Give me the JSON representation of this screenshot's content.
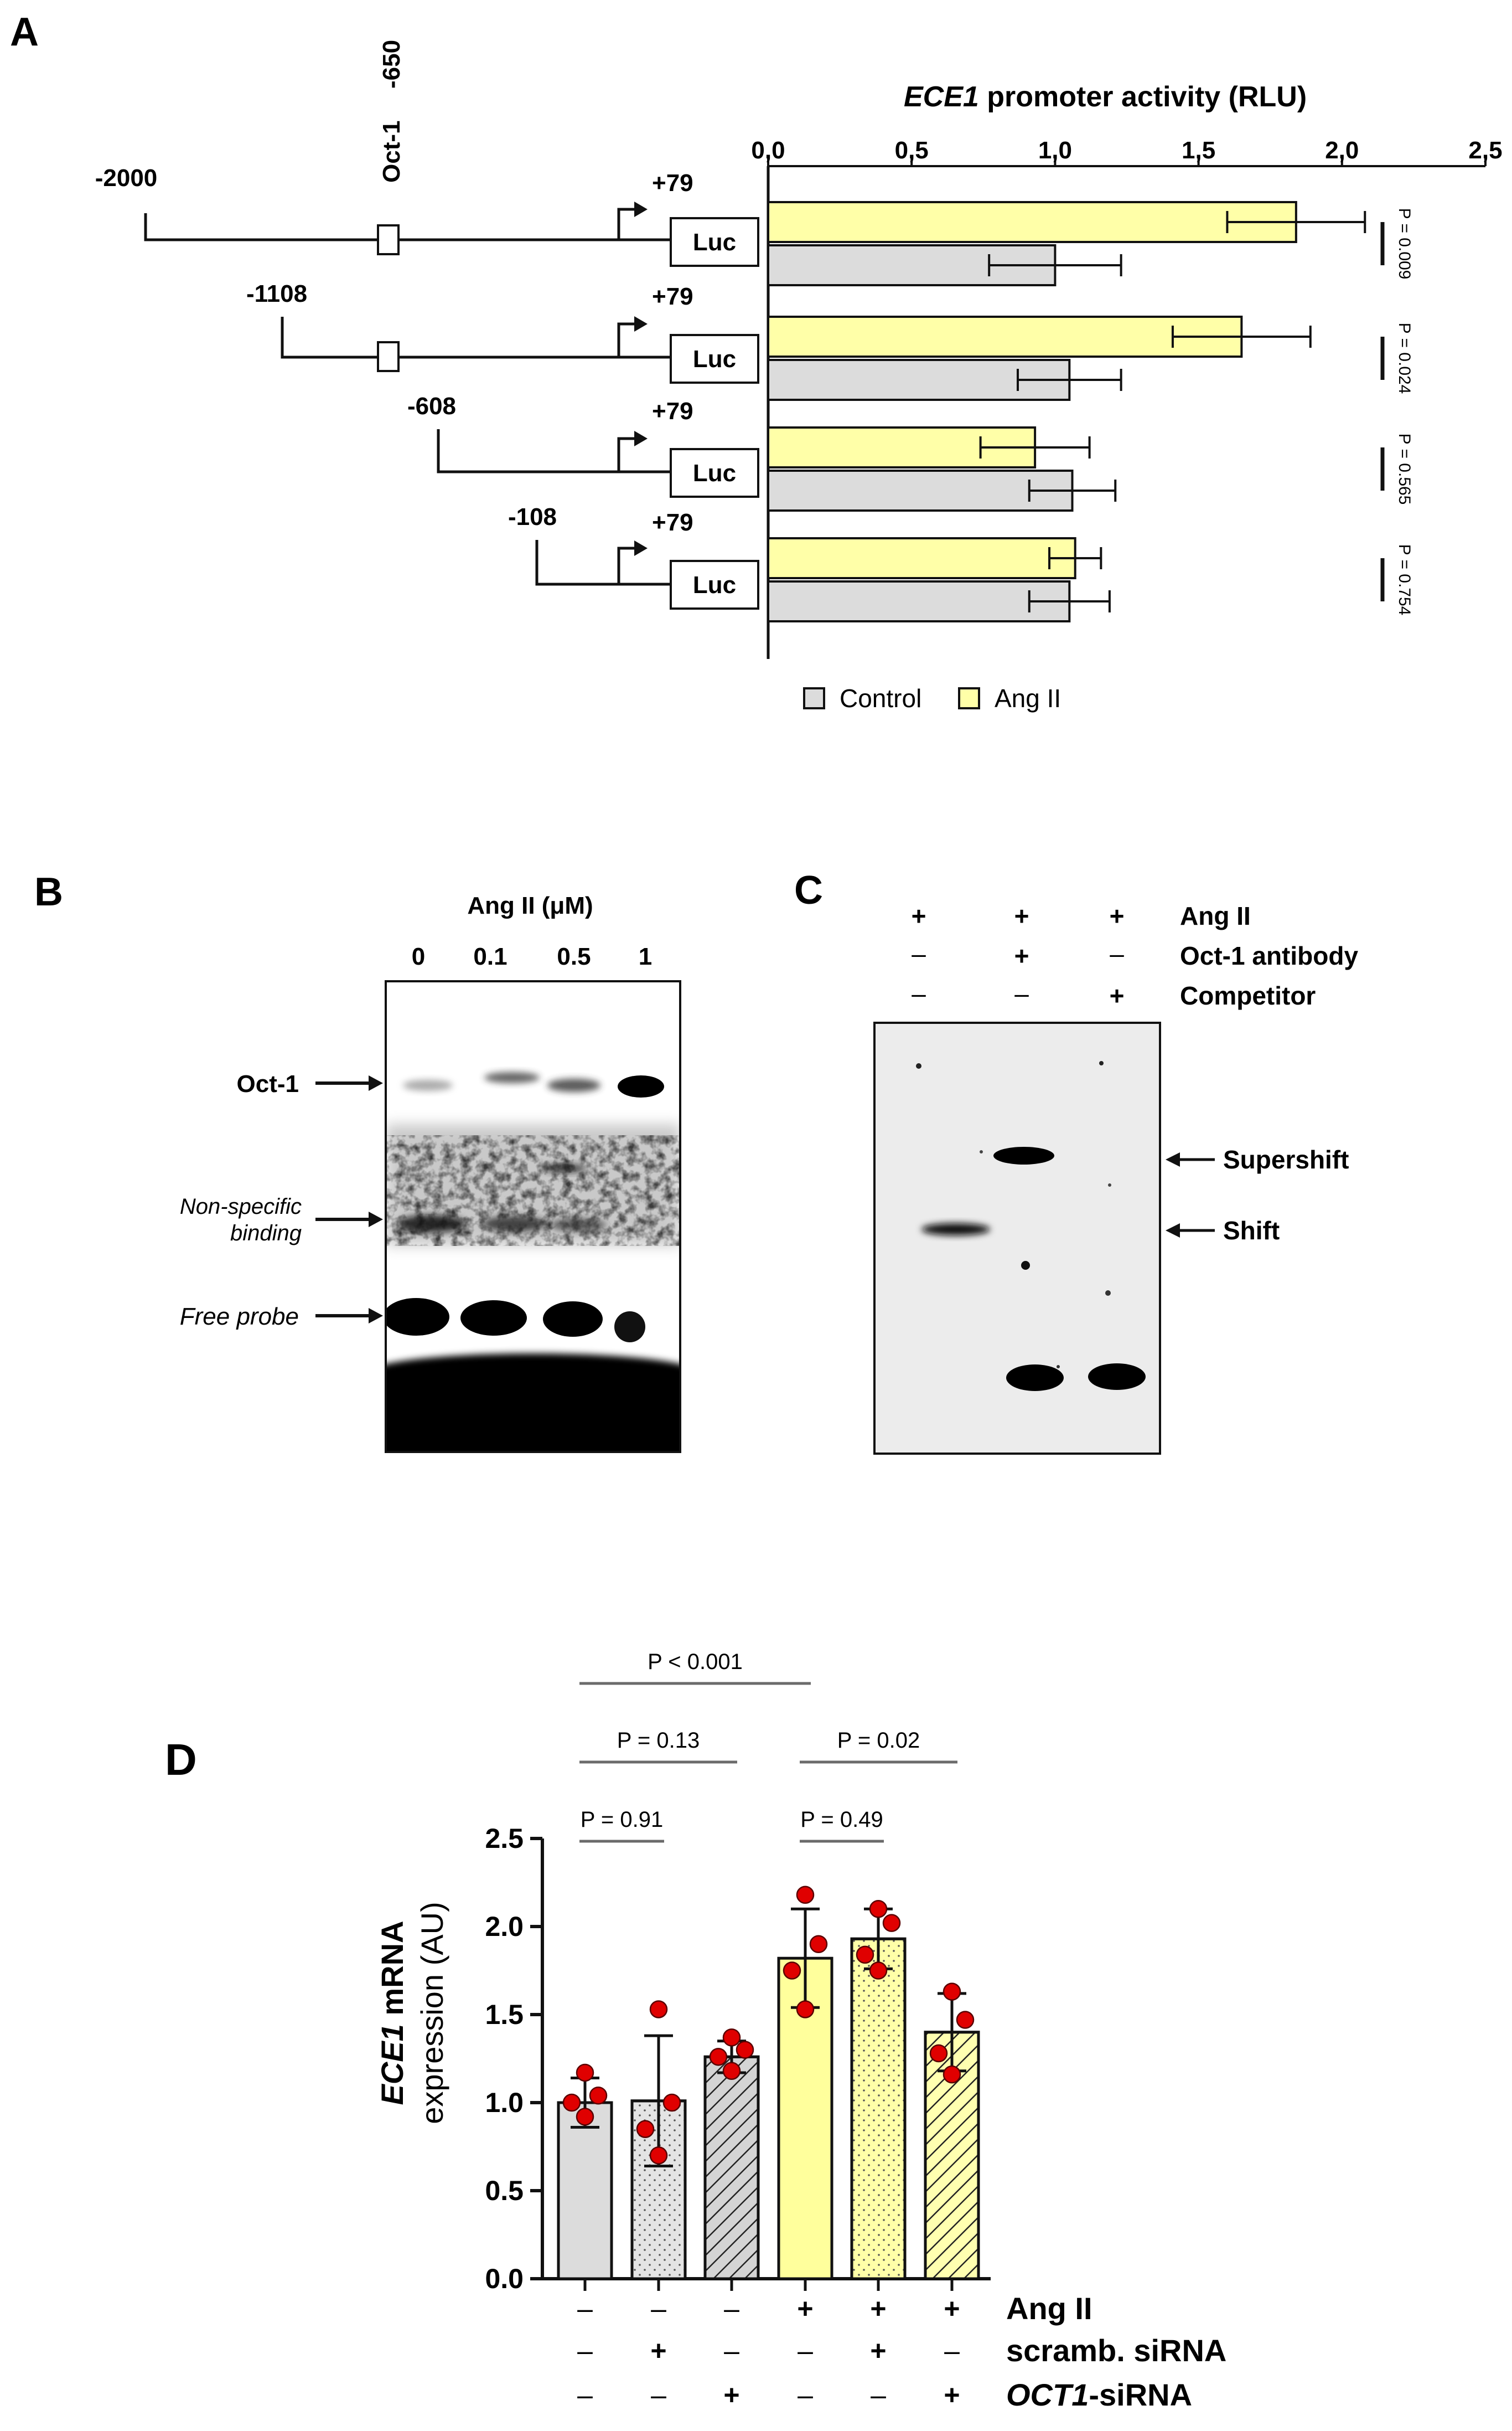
{
  "panels": {
    "A": {
      "letter": "A",
      "chart_title_italic": "ECE1",
      "chart_title_rest": " promoter activity (RLU)",
      "oct1_site": "Oct-1",
      "oct1_position": "-650",
      "luc": "Luc",
      "tss": "+79",
      "constructs": [
        "-2000",
        "-1108",
        "-608",
        "-108"
      ],
      "legend": [
        "Control",
        "Ang II"
      ]
    },
    "B": {
      "letter": "B",
      "header": "Ang II (μM)",
      "lanes": [
        "0",
        "0.1",
        "0.5",
        "1"
      ],
      "labels": {
        "oct1": "Oct-1",
        "nonspecific_1": "Non-specific",
        "nonspecific_2": "binding",
        "free_probe": "Free probe"
      }
    },
    "C": {
      "letter": "C",
      "rows": [
        {
          "label": "Ang II",
          "marks": [
            "+",
            "+",
            "+"
          ]
        },
        {
          "label": "Oct-1 antibody",
          "marks": [
            "–",
            "+",
            "–"
          ]
        },
        {
          "label": "Competitor",
          "marks": [
            "–",
            "–",
            "+"
          ]
        }
      ],
      "arrows": [
        "Supershift",
        "Shift"
      ]
    },
    "D": {
      "letter": "D",
      "ylabel_italic": "ECE1",
      "ylabel_rest": " mRNA",
      "ylabel_line2": "expression (AU)",
      "conditions": [
        {
          "label": "Ang II",
          "label_italic": "",
          "marks": [
            "–",
            "–",
            "–",
            "+",
            "+",
            "+"
          ]
        },
        {
          "label": "scramb. siRNA",
          "label_italic": "",
          "marks": [
            "–",
            "+",
            "–",
            "–",
            "+",
            "–"
          ]
        },
        {
          "label": "-siRNA",
          "label_italic": "OCT1",
          "marks": [
            "–",
            "–",
            "+",
            "–",
            "–",
            "+"
          ]
        }
      ],
      "pvalues": [
        {
          "text": "P = 0.91",
          "from": 0,
          "to": 1
        },
        {
          "text": "P = 0.49",
          "from": 3,
          "to": 4
        },
        {
          "text": "P = 0.13",
          "from": 0,
          "to": 2
        },
        {
          "text": "P = 0.02",
          "from": 3,
          "to": 5
        },
        {
          "text": "P < 0.001",
          "from": 0,
          "to": 3
        }
      ]
    }
  },
  "chart_data": [
    {
      "type": "bar",
      "orientation": "horizontal",
      "title": "ECE1 promoter activity (RLU)",
      "categories": [
        "-2000/+79",
        "-1108/+79",
        "-608/+79",
        "-108/+79"
      ],
      "series": [
        {
          "name": "Ang II",
          "color": "#ffffa8",
          "values": [
            1.84,
            1.65,
            0.93,
            1.07
          ],
          "errors": [
            0.24,
            0.24,
            0.19,
            0.09
          ]
        },
        {
          "name": "Control",
          "color": "#dcdcdc",
          "values": [
            1.0,
            1.05,
            1.06,
            1.05
          ],
          "errors": [
            0.23,
            0.18,
            0.15,
            0.14
          ]
        }
      ],
      "pvalues": [
        "P = 0.009",
        "P = 0.024",
        "P = 0.565",
        "P = 0.754"
      ],
      "xlim": [
        0,
        2.5
      ],
      "xticks": [
        "0,0",
        "0,5",
        "1,0",
        "1,5",
        "2,0",
        "2,5"
      ]
    },
    {
      "type": "bar",
      "ylabel": "ECE1 mRNA expression (AU)",
      "ylim": [
        0,
        2.5
      ],
      "yticks": [
        "0.0",
        "0.5",
        "1.0",
        "1.5",
        "2.0",
        "2.5"
      ],
      "bars": [
        {
          "mean": 1.0,
          "sd": 0.14,
          "fill": "#dcdcdc",
          "pattern": "none",
          "points": [
            0.92,
            1.0,
            1.04,
            1.17
          ]
        },
        {
          "mean": 1.01,
          "sd": 0.37,
          "fill": "#e4e4e4",
          "pattern": "dots",
          "points": [
            0.7,
            0.85,
            1.0,
            1.53
          ]
        },
        {
          "mean": 1.26,
          "sd": 0.09,
          "fill": "#d4d4d4",
          "pattern": "hatch",
          "points": [
            1.18,
            1.26,
            1.3,
            1.37
          ]
        },
        {
          "mean": 1.82,
          "sd": 0.28,
          "fill": "#ffff9c",
          "pattern": "none",
          "points": [
            1.53,
            1.75,
            1.9,
            2.18
          ]
        },
        {
          "mean": 1.93,
          "sd": 0.17,
          "fill": "#ffffa8",
          "pattern": "dots",
          "points": [
            1.75,
            1.84,
            2.02,
            2.1
          ]
        },
        {
          "mean": 1.4,
          "sd": 0.22,
          "fill": "#ffffb0",
          "pattern": "hatch",
          "points": [
            1.16,
            1.28,
            1.47,
            1.63
          ]
        }
      ]
    }
  ]
}
